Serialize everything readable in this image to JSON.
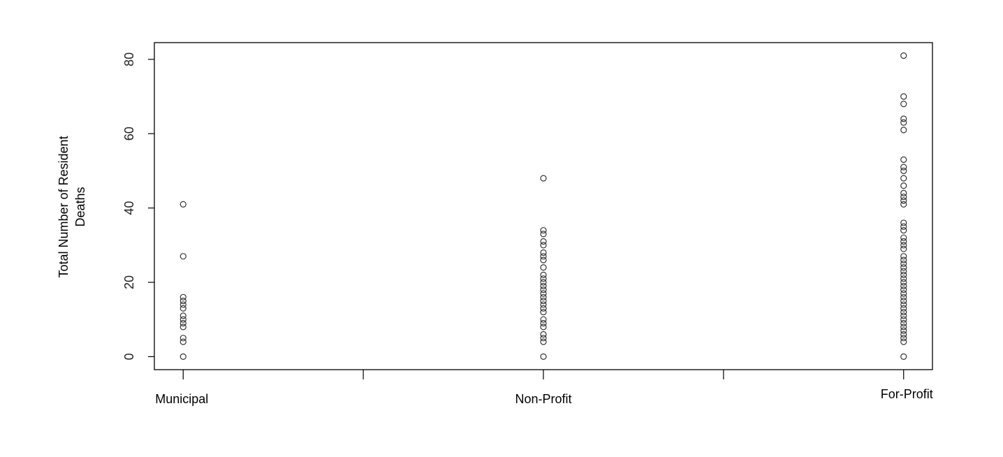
{
  "chart_data": {
    "type": "scatter",
    "title": "",
    "xlabel": "",
    "ylabel_lines": [
      "Total Number of Resident",
      "Deaths"
    ],
    "categories": [
      "Municipal",
      "Non-Profit",
      "For-Profit"
    ],
    "ylim": [
      -3.5,
      84.5
    ],
    "y_ticks": [
      0,
      20,
      40,
      60,
      80
    ],
    "grid": false,
    "legend": "none",
    "marker": "open-circle",
    "series": [
      {
        "category": "Municipal",
        "values": [
          41,
          27,
          16,
          15,
          14,
          13,
          11,
          10,
          9,
          8,
          5,
          4,
          0
        ]
      },
      {
        "category": "Non-Profit",
        "values": [
          48,
          34,
          33,
          31,
          30,
          28,
          27,
          26,
          24,
          22,
          21,
          20,
          19,
          18,
          17,
          16,
          15,
          14,
          13,
          12,
          10,
          9,
          8,
          6,
          5,
          4,
          0
        ]
      },
      {
        "category": "For-Profit",
        "values": [
          81,
          70,
          68,
          64,
          63,
          61,
          53,
          51,
          50,
          48,
          46,
          44,
          43,
          42,
          41,
          36,
          35,
          34,
          32,
          31,
          30,
          29,
          27,
          26,
          25,
          24,
          23,
          22,
          21,
          20,
          19,
          18,
          17,
          16,
          15,
          14,
          13,
          12,
          11,
          10,
          9,
          8,
          7,
          6,
          5,
          4,
          0
        ]
      }
    ]
  }
}
